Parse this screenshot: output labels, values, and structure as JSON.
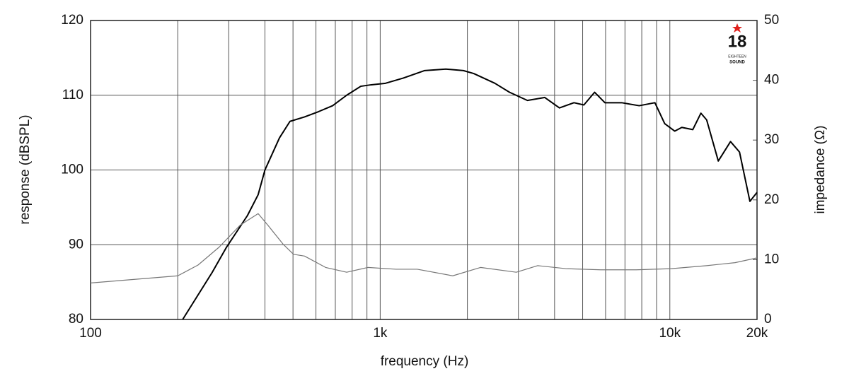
{
  "chart_data": {
    "type": "line",
    "xlabel": "frequency (Hz)",
    "ylabel": "response (dBSPL)",
    "y2label": "impedance (Ω)",
    "xscale": "log",
    "grid": true,
    "xlim": [
      100,
      20000
    ],
    "ylim": [
      80,
      120
    ],
    "y2lim": [
      0,
      50
    ],
    "xticks": [
      100,
      {
        "value": 1000,
        "label": "1k"
      },
      {
        "value": 10000,
        "label": "10k"
      },
      {
        "value": 20000,
        "label": "20k"
      }
    ],
    "xminorticks": [
      200,
      300,
      400,
      500,
      600,
      700,
      800,
      900,
      2000,
      3000,
      4000,
      5000,
      6000,
      7000,
      8000,
      9000
    ],
    "yticks": [
      80,
      90,
      100,
      110,
      120
    ],
    "y2ticks": [
      0,
      10,
      20,
      30,
      40,
      50
    ],
    "series": [
      {
        "name": "response",
        "color": "#000000",
        "width": 2,
        "x": [
          208,
          263,
          294,
          348,
          379,
          400,
          449,
          488,
          548,
          612,
          685,
          766,
          857,
          932,
          1043,
          1202,
          1424,
          1685,
          1938,
          2104,
          2488,
          2795,
          3223,
          3700,
          4158,
          4667,
          5049,
          5500,
          5968,
          6820,
          7840,
          8880,
          9600,
          10400,
          11000,
          12000,
          12800,
          13400,
          14700,
          16200,
          17400,
          18900,
          20000
        ],
        "values": [
          80,
          86.3,
          89.6,
          93.9,
          96.7,
          100,
          104.3,
          106.5,
          107.1,
          107.8,
          108.6,
          110,
          111.2,
          111.4,
          111.6,
          112.3,
          113.3,
          113.5,
          113.3,
          112.9,
          111.6,
          110.4,
          109.3,
          109.7,
          108.3,
          109,
          108.7,
          110.4,
          109,
          109,
          108.6,
          109,
          106.2,
          105.2,
          105.7,
          105.4,
          107.6,
          106.7,
          101.2,
          103.8,
          102.4,
          95.8,
          97
        ]
      },
      {
        "name": "impedance",
        "color": "#777777",
        "width": 1.2,
        "axis": "y2",
        "x": [
          100,
          200,
          235,
          278,
          329,
          379,
          412,
          462,
          502,
          548,
          648,
          766,
          906,
          1135,
          1343,
          1780,
          2220,
          2950,
          3500,
          4370,
          5770,
          7660,
          10120,
          13400,
          16800,
          20000
        ],
        "values": [
          6.1,
          7.3,
          9.1,
          12.1,
          15.8,
          17.7,
          15.6,
          12.6,
          10.9,
          10.6,
          8.7,
          7.9,
          8.7,
          8.4,
          8.4,
          7.3,
          8.7,
          7.9,
          9.0,
          8.5,
          8.3,
          8.3,
          8.5,
          9.0,
          9.5,
          10.3
        ]
      }
    ]
  },
  "logo": {
    "number": "18",
    "line1": "EIGHTEEN",
    "line2": "SOUND"
  }
}
